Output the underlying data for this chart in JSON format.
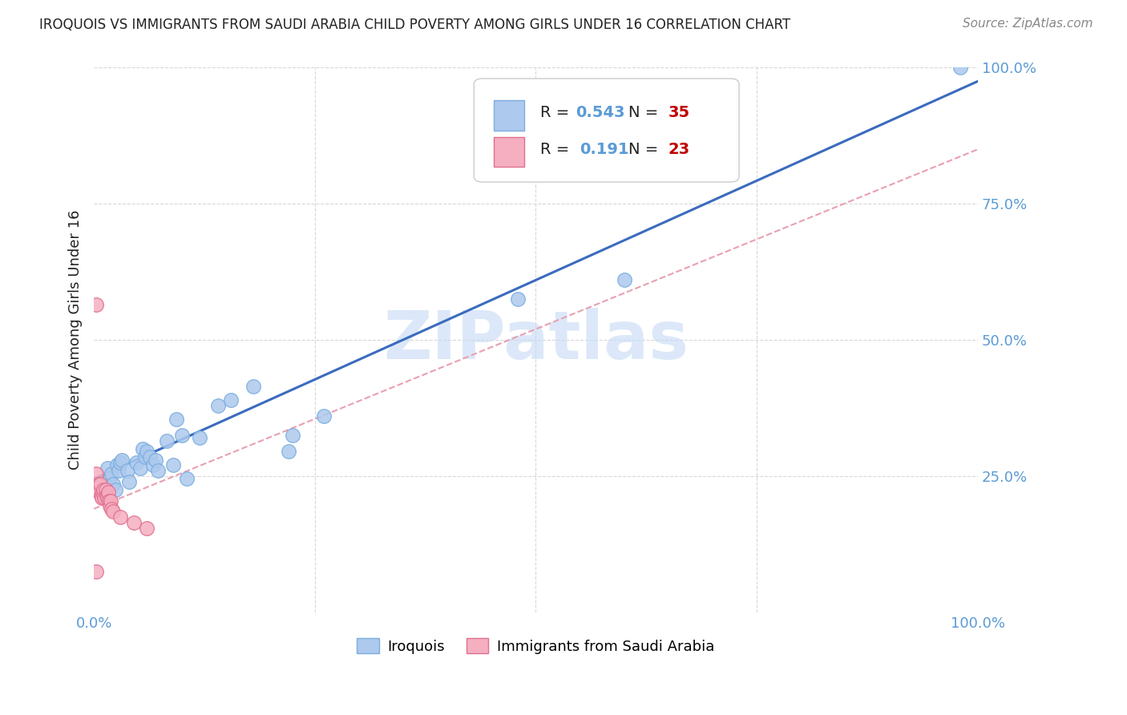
{
  "title": "IROQUOIS VS IMMIGRANTS FROM SAUDI ARABIA CHILD POVERTY AMONG GIRLS UNDER 16 CORRELATION CHART",
  "source": "Source: ZipAtlas.com",
  "ylabel": "Child Poverty Among Girls Under 16",
  "xlim": [
    0,
    1
  ],
  "ylim": [
    0,
    1
  ],
  "iroquois_color": "#adc9ed",
  "iroquois_edge": "#7aaee0",
  "saudi_color": "#f5afc0",
  "saudi_edge": "#e07090",
  "iroquois_R": "0.543",
  "iroquois_N": "35",
  "saudi_R": "0.191",
  "saudi_N": "23",
  "tick_color": "#5b9bd5",
  "text_color": "#222222",
  "source_color": "#888888",
  "line_blue": "#3a6bbf",
  "line_pink": "#e8a0b0",
  "grid_color": "#d8d8d8",
  "watermark_color": "#c5daf5",
  "iroquois_scatter_x": [
    0.015,
    0.018,
    0.02,
    0.022,
    0.024,
    0.026,
    0.028,
    0.03,
    0.032,
    0.038,
    0.04,
    0.048,
    0.052,
    0.055,
    0.058,
    0.06,
    0.063,
    0.067,
    0.07,
    0.072,
    0.082,
    0.09,
    0.093,
    0.1,
    0.105,
    0.12,
    0.14,
    0.155,
    0.18,
    0.22,
    0.225,
    0.26,
    0.48,
    0.6,
    0.98
  ],
  "iroquois_scatter_y": [
    0.265,
    0.245,
    0.255,
    0.235,
    0.225,
    0.27,
    0.26,
    0.275,
    0.28,
    0.26,
    0.24,
    0.275,
    0.265,
    0.3,
    0.285,
    0.295,
    0.285,
    0.27,
    0.28,
    0.26,
    0.315,
    0.27,
    0.355,
    0.325,
    0.245,
    0.32,
    0.38,
    0.39,
    0.415,
    0.295,
    0.325,
    0.36,
    0.575,
    0.61,
    1.0
  ],
  "saudi_scatter_x": [
    0.003,
    0.003,
    0.003,
    0.005,
    0.006,
    0.007,
    0.008,
    0.009,
    0.01,
    0.011,
    0.012,
    0.013,
    0.014,
    0.015,
    0.016,
    0.017,
    0.018,
    0.019,
    0.02,
    0.022,
    0.03,
    0.045,
    0.06
  ],
  "saudi_scatter_y": [
    0.565,
    0.255,
    0.075,
    0.235,
    0.22,
    0.235,
    0.215,
    0.21,
    0.22,
    0.225,
    0.21,
    0.225,
    0.215,
    0.21,
    0.22,
    0.205,
    0.195,
    0.205,
    0.19,
    0.185,
    0.175,
    0.165,
    0.155
  ],
  "iroquois_line_x": [
    0,
    1
  ],
  "iroquois_line_y": [
    0.245,
    0.975
  ],
  "saudi_line_x": [
    0,
    1
  ],
  "saudi_line_y": [
    0.19,
    0.85
  ],
  "background_color": "#ffffff"
}
